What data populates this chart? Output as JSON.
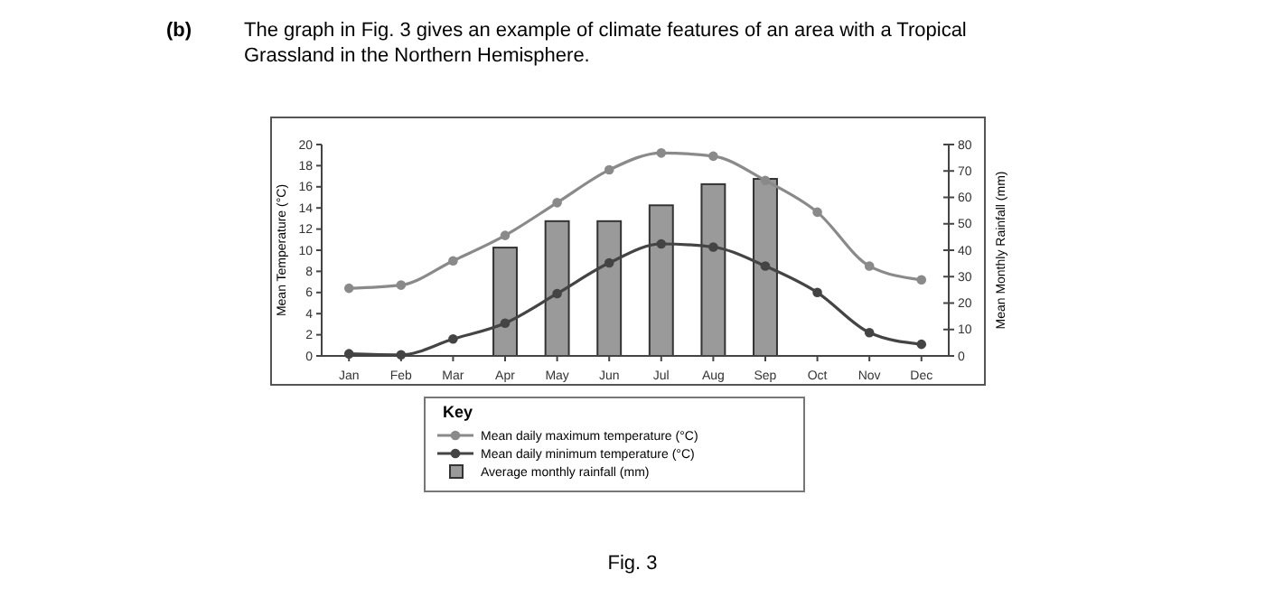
{
  "chart_data": {
    "type": "bar",
    "title": "The graph in Fig. 3 gives an example of climate features of an area with a Tropical Grassland in the Northern Hemisphere.",
    "annotations": [
      "(b)",
      "Fig. 3"
    ],
    "categories": [
      "Jan",
      "Feb",
      "Mar",
      "Apr",
      "May",
      "Jun",
      "Jul",
      "Aug",
      "Sep",
      "Oct",
      "Nov",
      "Dec"
    ],
    "ylabel": "Mean Temperature (°C)",
    "y2label": "Mean Monthly Rainfall (mm)",
    "ylim": [
      0,
      20
    ],
    "yticks": [
      0,
      2,
      4,
      6,
      8,
      10,
      12,
      14,
      16,
      18,
      20
    ],
    "y2lim": [
      0,
      80
    ],
    "y2ticks": [
      0,
      10,
      20,
      30,
      40,
      50,
      60,
      70,
      80
    ],
    "legend": "bottom",
    "legend_title": "Key",
    "marker": "circle",
    "grid": false,
    "series": [
      {
        "name": "Mean daily maximum temperature (°C)",
        "type": "line",
        "color": "#8a8a8a",
        "values": [
          6.4,
          6.7,
          9,
          11.4,
          14.5,
          17.6,
          19.2,
          18.9,
          16.6,
          13.6,
          8.5,
          7.2
        ]
      },
      {
        "name": "Mean daily minimum temperature (°C)",
        "type": "line",
        "color": "#444444",
        "values": [
          0.2,
          0.1,
          1.6,
          3.1,
          5.9,
          8.8,
          10.6,
          10.3,
          8.5,
          6,
          2.2,
          1.1
        ]
      },
      {
        "name": "Average monthly rainfall (mm)",
        "axis": "y2",
        "color": "#9a9a9a",
        "values": [
          0,
          0,
          0,
          41,
          51,
          51,
          57,
          65,
          67,
          0,
          0,
          0
        ]
      }
    ]
  }
}
